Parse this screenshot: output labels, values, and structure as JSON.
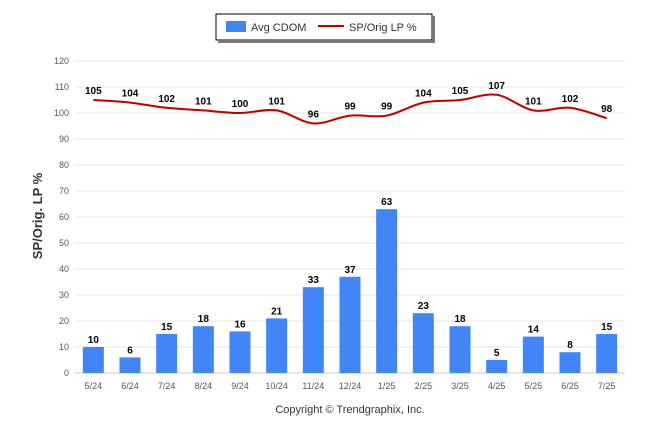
{
  "chart_data": {
    "type": "bar",
    "categories": [
      "5/24",
      "6/24",
      "7/24",
      "8/24",
      "9/24",
      "10/24",
      "11/24",
      "12/24",
      "1/25",
      "2/25",
      "3/25",
      "4/25",
      "5/25",
      "6/25",
      "7/25"
    ],
    "series": [
      {
        "name": "Avg CDOM",
        "type": "bar",
        "color": "#4285f4",
        "values": [
          10,
          6,
          15,
          18,
          16,
          21,
          33,
          37,
          63,
          23,
          18,
          5,
          14,
          8,
          15
        ]
      },
      {
        "name": "SP/Orig LP %",
        "type": "line",
        "color": "#c00000",
        "values": [
          105,
          104,
          102,
          101,
          100,
          101,
          96,
          99,
          99,
          104,
          105,
          107,
          101,
          102,
          98
        ]
      }
    ],
    "ylabel": "SP/Orig. LP %",
    "ylim": [
      0,
      120
    ],
    "yticks": [
      0,
      10,
      20,
      30,
      40,
      50,
      60,
      70,
      80,
      90,
      100,
      110,
      120
    ],
    "grid": true,
    "legend_position": "top-center"
  },
  "footer": {
    "copyright": "Copyright © Trendgraphix, Inc."
  }
}
